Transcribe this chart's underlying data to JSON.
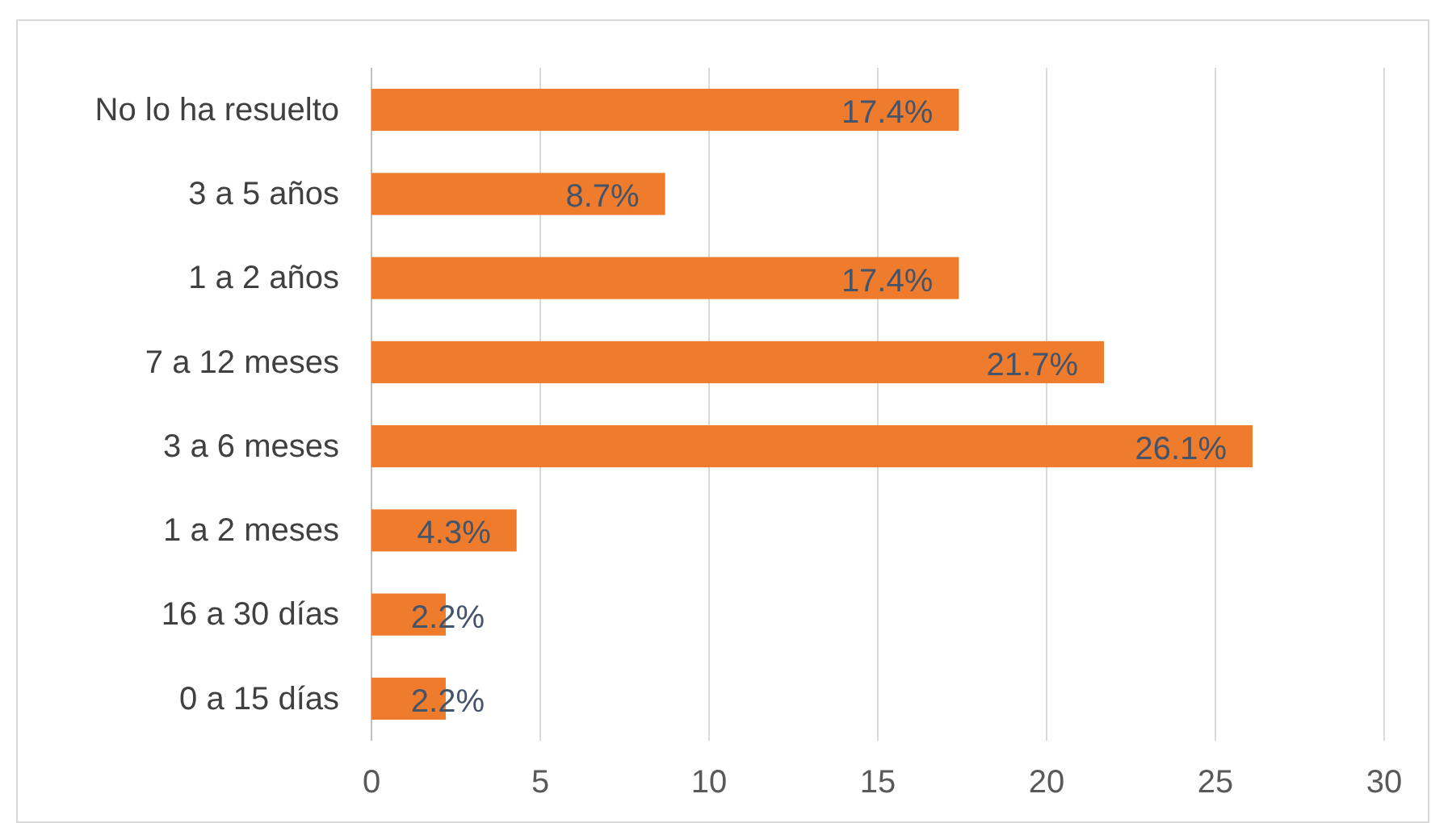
{
  "chart_data": {
    "type": "bar",
    "orientation": "horizontal",
    "categories": [
      "No lo ha resuelto",
      "3 a 5 años",
      "1 a 2 años",
      "7 a 12 meses",
      "3 a 6 meses",
      "1 a 2 meses",
      "16 a 30 días",
      "0 a 15 días"
    ],
    "values": [
      17.4,
      8.7,
      17.4,
      21.7,
      26.1,
      4.3,
      2.2,
      2.2
    ],
    "value_labels": [
      "17.4%",
      "8.7%",
      "17.4%",
      "21.7%",
      "26.1%",
      "4.3%",
      "2.2%",
      "2.2%"
    ],
    "color": "#ef7b2c",
    "xlim": [
      0,
      30
    ],
    "xticks": [
      0,
      5,
      10,
      15,
      20,
      25,
      30
    ],
    "grid": "x"
  }
}
